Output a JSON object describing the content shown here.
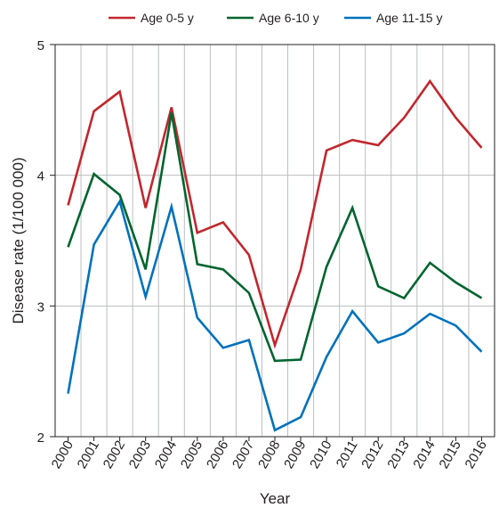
{
  "chart_data": {
    "type": "line",
    "title": "",
    "xlabel": "Year",
    "ylabel": "Disease rate (1/100 000)",
    "categories": [
      "2000",
      "2001",
      "2002",
      "2003",
      "2004",
      "2005",
      "2006",
      "2007",
      "2008",
      "2009",
      "2010",
      "2011",
      "2012",
      "2013",
      "2014",
      "2015",
      "2016"
    ],
    "ylim": [
      2,
      5
    ],
    "yticks": [
      "2",
      "3",
      "4",
      "5"
    ],
    "grid": true,
    "legend_position": "top",
    "series": [
      {
        "name": "Age 0-5 y",
        "color": "#c1272d",
        "values": [
          3.77,
          4.49,
          4.64,
          3.75,
          4.52,
          3.56,
          3.64,
          3.39,
          2.7,
          3.28,
          4.19,
          4.27,
          4.23,
          4.44,
          4.72,
          4.44,
          4.21
        ]
      },
      {
        "name": "Age 6-10 y",
        "color": "#00652e",
        "values": [
          3.45,
          4.01,
          3.85,
          3.28,
          4.48,
          3.32,
          3.28,
          3.1,
          2.58,
          2.59,
          3.3,
          3.75,
          3.15,
          3.06,
          3.33,
          3.18,
          3.06
        ]
      },
      {
        "name": "Age 11-15 y",
        "color": "#0072bc",
        "values": [
          2.33,
          3.47,
          3.8,
          3.07,
          3.76,
          2.91,
          2.68,
          2.74,
          2.05,
          2.15,
          2.61,
          2.96,
          2.72,
          2.79,
          2.94,
          2.85,
          2.65
        ]
      }
    ]
  }
}
